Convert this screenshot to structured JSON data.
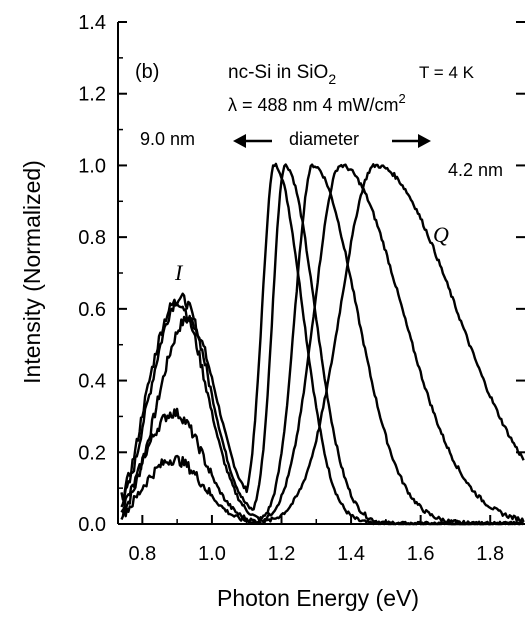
{
  "chart_data": {
    "type": "line",
    "panel_label": "(b)",
    "title_parts": {
      "main": "nc-Si in SiO",
      "sub": "2",
      "temp": "T = 4 K"
    },
    "subtitle_parts": {
      "lambda": "λ = 488 nm  4 mW/cm",
      "sup": "2"
    },
    "annotations": {
      "left_size": "9.0 nm",
      "middle": "diameter",
      "right_size": "4.2 nm",
      "peak_I": "I",
      "peak_Q": "Q"
    },
    "xlabel": "Photon Energy (eV)",
    "ylabel": "Intensity (Normalized)",
    "xlim": [
      0.73,
      1.9
    ],
    "ylim": [
      0.0,
      1.4
    ],
    "xticks": [
      "0.8",
      "1.0",
      "1.2",
      "1.4",
      "1.6",
      "1.8"
    ],
    "yticks": [
      "0.0",
      "0.2",
      "0.4",
      "0.6",
      "0.8",
      "1.0",
      "1.2",
      "1.4"
    ],
    "series": [
      {
        "peak_I_x": 0.93,
        "peak_I_y": 0.57,
        "peak_Q_x": 1.18,
        "width_Q": 0.035,
        "decay_Q": 0.045
      },
      {
        "peak_I_x": 0.91,
        "peak_I_y": 0.63,
        "peak_Q_x": 1.21,
        "width_Q": 0.035,
        "decay_Q": 0.05
      },
      {
        "peak_I_x": 0.9,
        "peak_I_y": 0.62,
        "peak_Q_x": 1.29,
        "width_Q": 0.05,
        "decay_Q": 0.075
      },
      {
        "peak_I_x": 0.89,
        "peak_I_y": 0.31,
        "peak_Q_x": 1.37,
        "width_Q": 0.075,
        "decay_Q": 0.1
      },
      {
        "peak_I_x": 0.89,
        "peak_I_y": 0.18,
        "peak_Q_x": 1.47,
        "width_Q": 0.1,
        "decay_Q": 0.13
      }
    ]
  }
}
